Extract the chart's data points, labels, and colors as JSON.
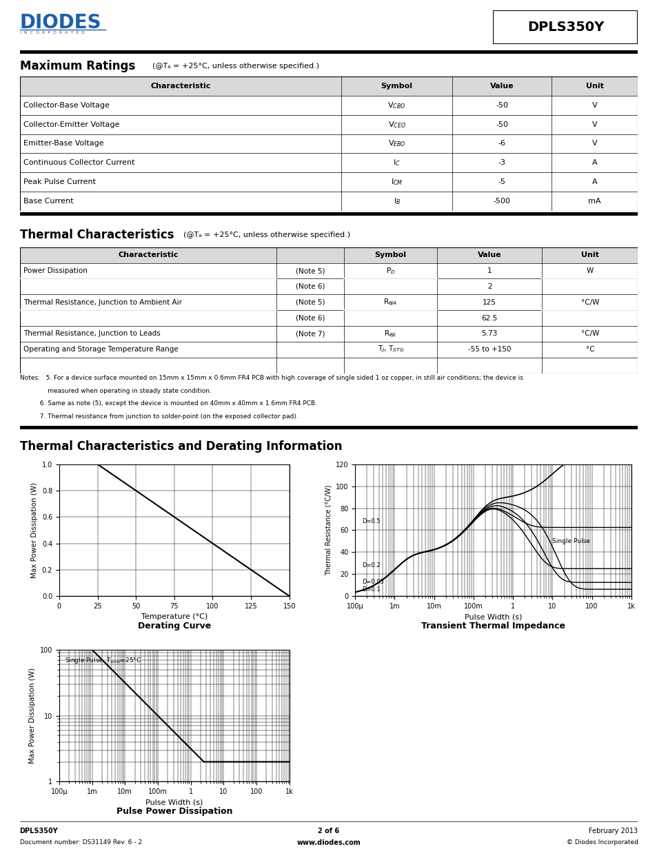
{
  "title_part": "DPLS350Y",
  "max_ratings_title": "Maximum Ratings",
  "max_ratings_subtitle": "(@Tₐ = +25°C, unless otherwise specified.)",
  "thermal_title": "Thermal Characteristics",
  "thermal_subtitle": "(@Tₐ = +25°C, unless otherwise specified.)",
  "section3_title": "Thermal Characteristics and Derating Information",
  "derating_title": "Derating Curve",
  "transient_title": "Transient Thermal Impedance",
  "pulse_title": "Pulse Power Dissipation",
  "mr_data": [
    [
      "Collector-Base Voltage",
      "V$_{CBO}$",
      "-50",
      "V"
    ],
    [
      "Collector-Emitter Voltage",
      "V$_{CEO}$",
      "-50",
      "V"
    ],
    [
      "Emitter-Base Voltage",
      "V$_{EBO}$",
      "-6",
      "V"
    ],
    [
      "Continuous Collector Current",
      "I$_C$",
      "-3",
      "A"
    ],
    [
      "Peak Pulse Current",
      "I$_{CM}$",
      "-5",
      "A"
    ],
    [
      "Base Current",
      "I$_B$",
      "-500",
      "mA"
    ]
  ],
  "tc_data": [
    [
      "Power Dissipation",
      "(Note 5)",
      "P$_D$",
      "1",
      "W",
      true
    ],
    [
      "Power Dissipation",
      "(Note 6)",
      "P$_D$",
      "2",
      "W",
      false
    ],
    [
      "Thermal Resistance, Junction to Ambient Air",
      "(Note 5)",
      "R$_{\\u03b8JA}$",
      "125",
      "°C/W",
      true
    ],
    [
      "Thermal Resistance, Junction to Ambient Air",
      "(Note 6)",
      "R$_{\\u03b8JA}$",
      "62.5",
      "°C/W",
      false
    ],
    [
      "Thermal Resistance, Junction to Leads",
      "(Note 7)",
      "R$_{\\u03b8JL}$",
      "5.73",
      "°C/W",
      true
    ],
    [
      "Operating and Storage Temperature Range",
      "",
      "T$_J$, T$_{STG}$",
      "-55 to +150",
      "°C",
      true
    ]
  ],
  "notes": [
    "Notes:   5. For a device surface mounted on 15mm x 15mm x 0.6mm FR4 PCB with high coverage of single sided 1 oz copper, in still air conditions; the device is",
    "              measured when operating in steady state condition.",
    "          6. Same as note (5), except the device is mounted on 40mm x 40mm x 1.6mm FR4 PCB.",
    "          7. Thermal resistance from junction to solder-point (on the exposed collector pad)."
  ]
}
